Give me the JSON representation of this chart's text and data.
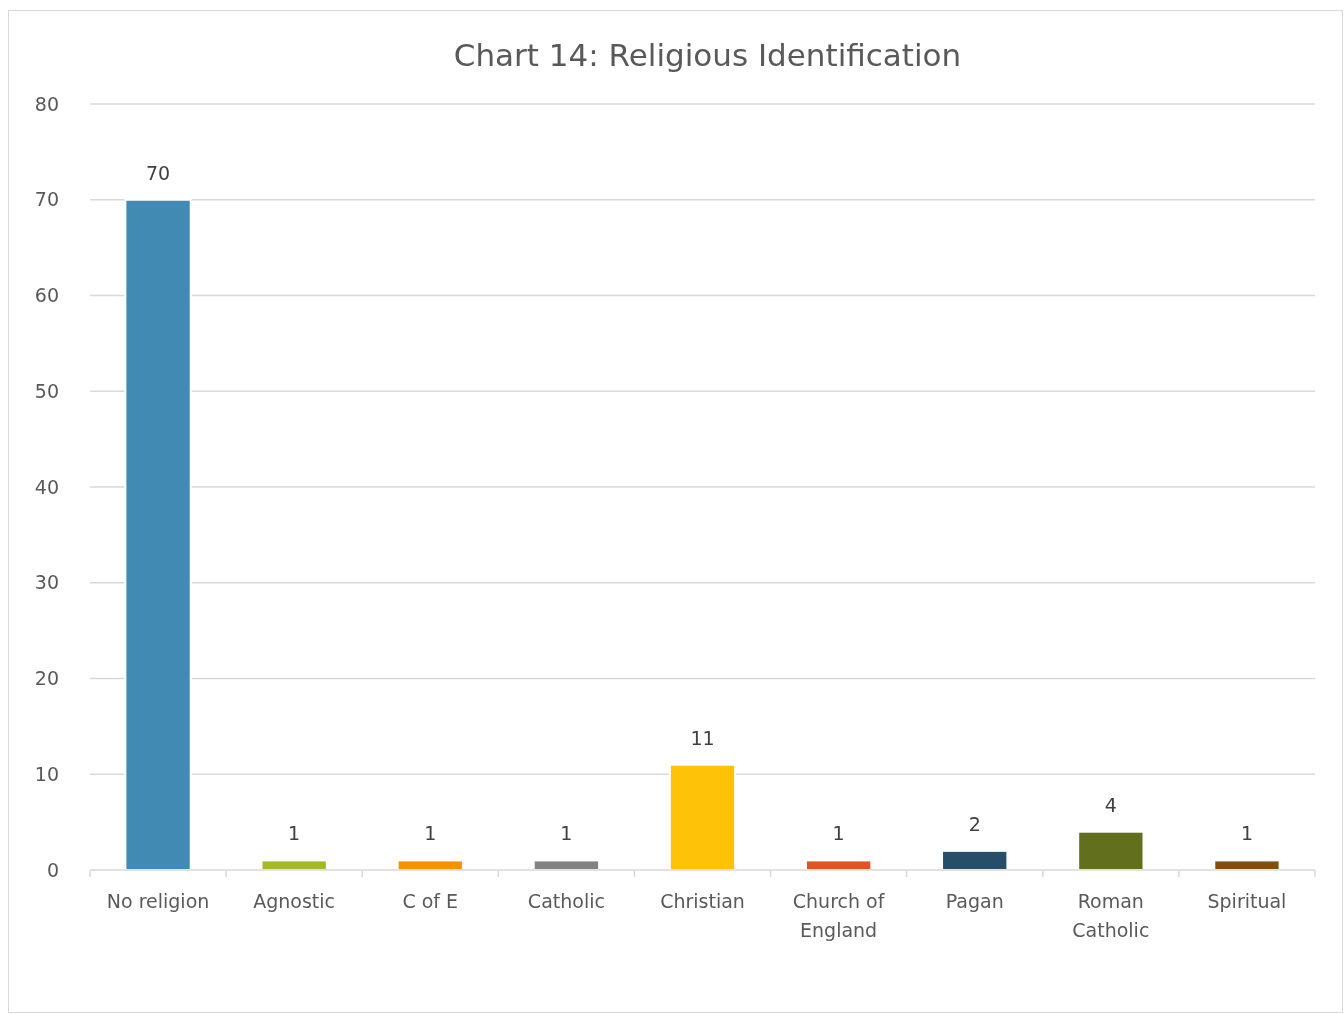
{
  "chart_data": {
    "type": "bar",
    "title": "Chart 14: Religious Identification",
    "categories": [
      "No religion",
      "Agnostic",
      "C of E",
      "Catholic",
      "Christian",
      "Church of England",
      "Pagan",
      "Roman Catholic",
      "Spiritual"
    ],
    "values": [
      70,
      1,
      1,
      1,
      11,
      1,
      2,
      4,
      1
    ],
    "colors": [
      "#418ab3",
      "#a6b727",
      "#f69200",
      "#838383",
      "#fec306",
      "#df5327",
      "#254e68",
      "#62701d",
      "#7e4f0f"
    ],
    "ylim": [
      0,
      80
    ],
    "yticks": [
      0,
      10,
      20,
      30,
      40,
      50,
      60,
      70,
      80
    ],
    "grid": "y",
    "data_labels": true
  }
}
